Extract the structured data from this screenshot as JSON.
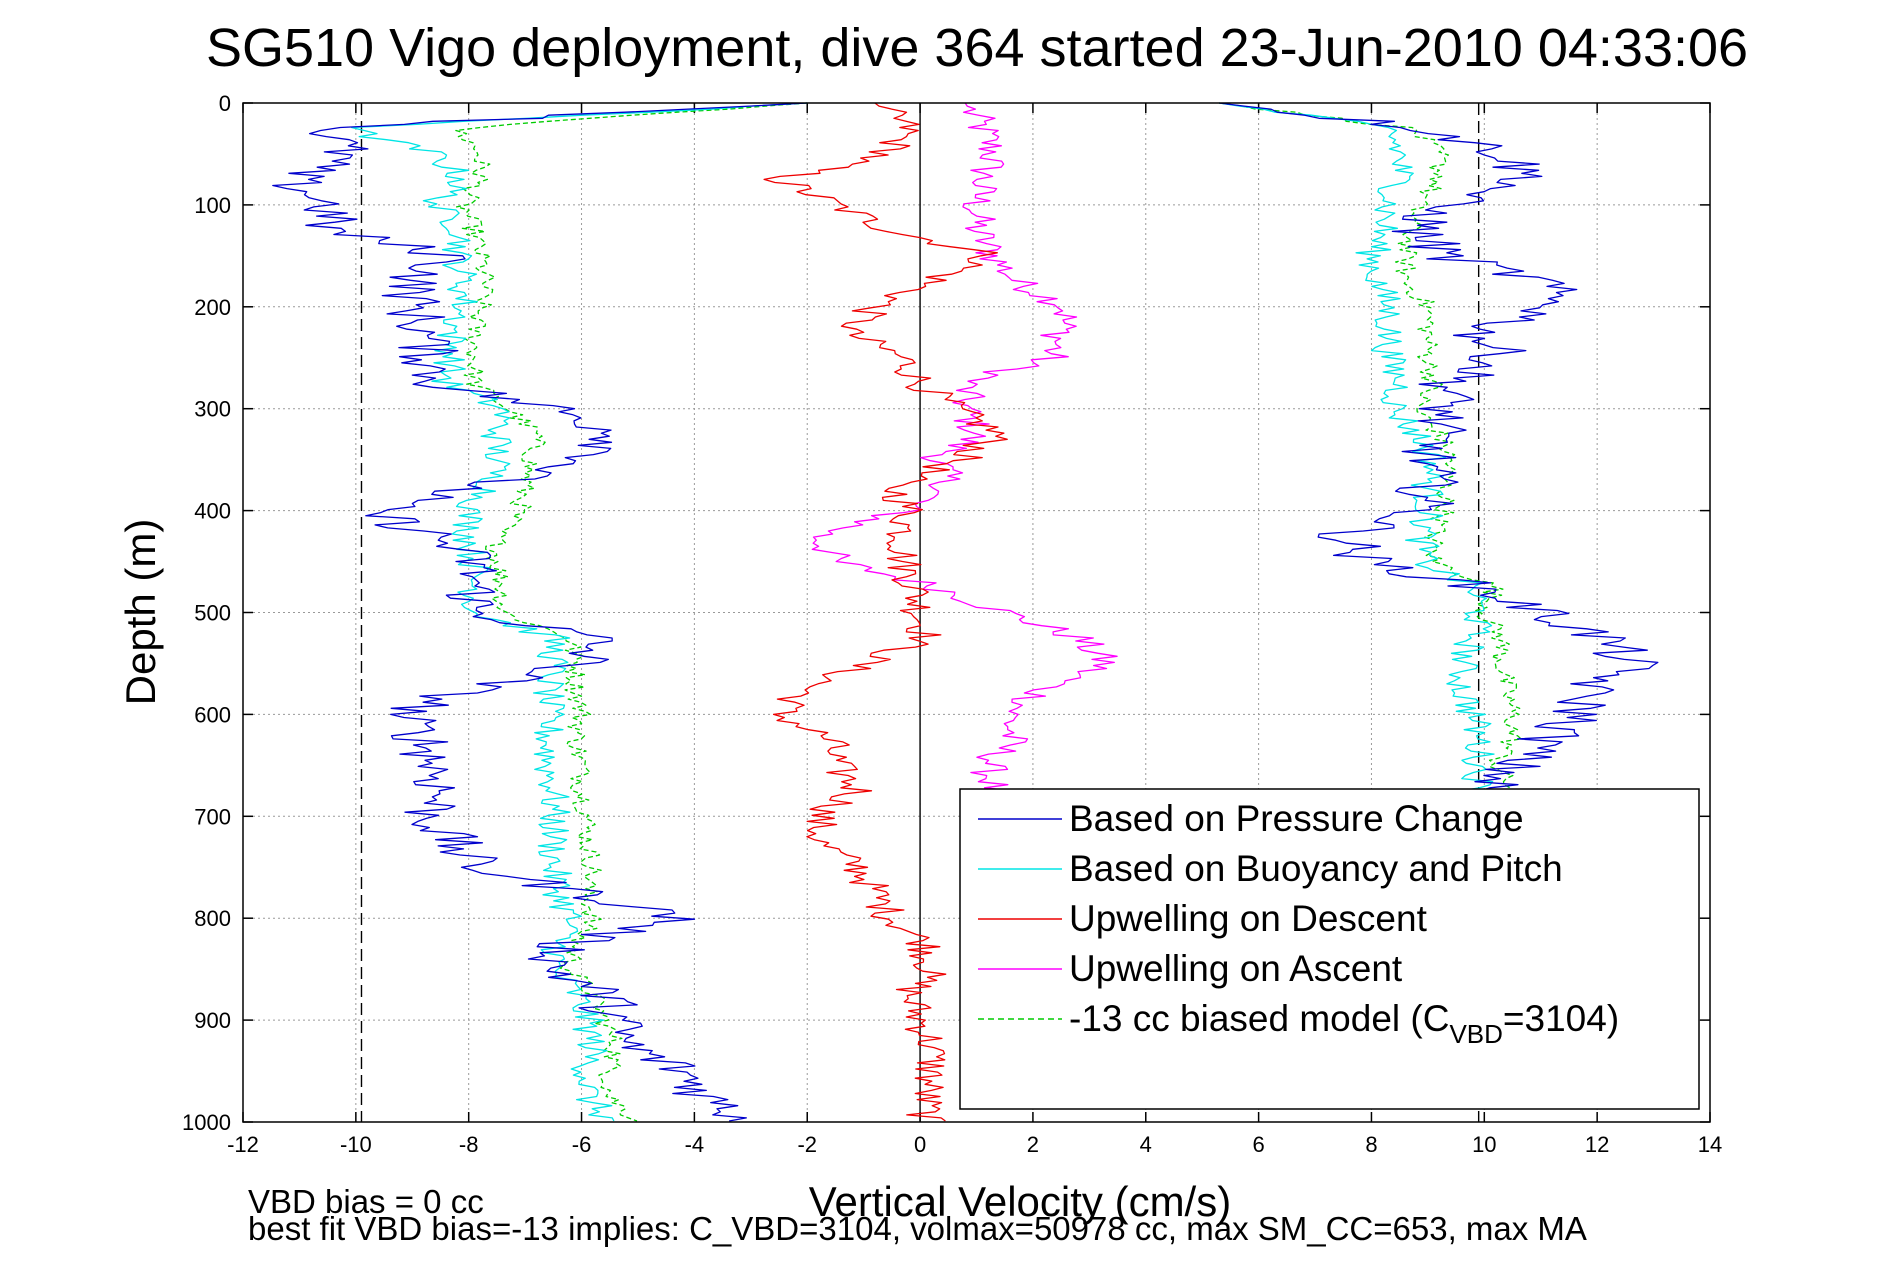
{
  "chart_data": {
    "type": "line",
    "title": "SG510 Vigo deployment, dive 364 started 23-Jun-2010 04:33:06",
    "xlabel": "Vertical Velocity (cm/s)",
    "ylabel": "Depth (m)",
    "xlim": [
      -12,
      14
    ],
    "ylim": [
      0,
      1000
    ],
    "y_reversed": true,
    "grid": true,
    "legend_position": "lower-right",
    "xticks": [
      "-12",
      "-10",
      "-8",
      "-6",
      "-4",
      "-2",
      "0",
      "2",
      "4",
      "6",
      "8",
      "10",
      "12",
      "14"
    ],
    "yticks": [
      "0",
      "100",
      "200",
      "300",
      "400",
      "500",
      "600",
      "700",
      "800",
      "900",
      "1000"
    ],
    "reference_lines": [
      {
        "x": -9.9,
        "style": "dashed",
        "color": "#000000"
      },
      {
        "x": 9.9,
        "style": "dashed",
        "color": "#000000"
      },
      {
        "x": 0,
        "style": "solid",
        "color": "#000000"
      }
    ],
    "legend": [
      {
        "label": "Based on Pressure Change",
        "color": "#0000cc",
        "dash": false
      },
      {
        "label": "Based on Buoyancy and Pitch",
        "color": "#00e5e5",
        "dash": false
      },
      {
        "label": "Upwelling on Descent",
        "color": "#ee0000",
        "dash": false
      },
      {
        "label": "Upwelling on Ascent",
        "color": "#ff00ff",
        "dash": false
      },
      {
        "label_main": "-13 cc biased model (C",
        "label_sub": "VBD",
        "label_end": "=3104)",
        "color": "#00cc00",
        "dash": true
      }
    ],
    "depth": [
      0,
      25,
      50,
      75,
      100,
      125,
      150,
      175,
      200,
      225,
      250,
      275,
      300,
      325,
      350,
      375,
      400,
      425,
      450,
      475,
      500,
      525,
      550,
      575,
      600,
      625,
      650,
      675,
      700,
      725,
      750,
      775,
      800,
      825,
      850,
      875,
      900,
      925,
      950,
      975,
      1000
    ],
    "series": [
      {
        "name": "Based on Pressure Change",
        "color": "#0000cc",
        "jitter": 0.55,
        "descent": [
          -2,
          -10.5,
          -10.2,
          -11.2,
          -10.5,
          -10.5,
          -8.3,
          -9.0,
          -9.0,
          -8.8,
          -8.7,
          -8.6,
          -6.5,
          -5.3,
          -5.8,
          -7.8,
          -9.8,
          -8.6,
          -7.9,
          -7.9,
          -7.9,
          -5.8,
          -6.0,
          -8.0,
          -9.2,
          -8.8,
          -8.6,
          -8.5,
          -8.7,
          -8.3,
          -7.9,
          -6.0,
          -4.2,
          -6.3,
          -6.5,
          -5.6,
          -5.4,
          -5.2,
          -4.2,
          -3.8,
          -3.0
        ],
        "ascent": [
          5.3,
          9.0,
          10.4,
          10.8,
          9.2,
          8.8,
          9.3,
          11.0,
          11.3,
          9.9,
          10.3,
          9.4,
          9.3,
          9.1,
          9.0,
          9.0,
          8.9,
          7.5,
          7.9,
          9.9,
          11.0,
          12.1,
          12.6,
          11.8,
          11.7,
          11.1,
          10.5,
          10.0
        ]
      },
      {
        "name": "Based on Buoyancy and Pitch",
        "color": "#00e5e5",
        "jitter": 0.3,
        "descent": [
          -2,
          -10.2,
          -8.6,
          -8.1,
          -8.6,
          -8.1,
          -8.2,
          -8.1,
          -8.1,
          -8.3,
          -8.3,
          -8.4,
          -7.4,
          -7.5,
          -7.5,
          -7.6,
          -8.0,
          -8.0,
          -7.9,
          -7.9,
          -7.9,
          -6.5,
          -6.5,
          -6.6,
          -6.6,
          -6.6,
          -6.6,
          -6.5,
          -6.5,
          -6.5,
          -6.5,
          -6.4,
          -6.2,
          -6.4,
          -6.5,
          -6.1,
          -5.9,
          -5.8,
          -5.9,
          -5.9,
          -5.5
        ],
        "ascent": [
          5.3,
          8.3,
          8.5,
          8.5,
          8.3,
          8.2,
          8.0,
          8.1,
          8.3,
          8.3,
          8.3,
          8.5,
          8.4,
          8.8,
          9.1,
          9.0,
          9.0,
          8.9,
          8.9,
          9.8,
          9.9,
          9.8,
          9.6,
          9.6,
          9.8,
          9.9,
          9.9,
          9.9
        ]
      },
      {
        "name": "Upwelling on Descent",
        "color": "#ee0000",
        "jitter": 0.35,
        "descent": [
          -0.8,
          -0.2,
          -0.6,
          -2.5,
          -1.5,
          -0.5,
          1.3,
          0.2,
          -0.8,
          -1.3,
          -0.3,
          0.0,
          0.6,
          1.4,
          0.7,
          -0.5,
          -0.2,
          -0.3,
          -0.3,
          -0.1,
          0.0,
          0.1,
          -1.0,
          -2.0,
          -2.5,
          -1.6,
          -1.5,
          -1.1,
          -1.8,
          -1.8,
          -1.1,
          -0.8,
          -0.5,
          0.1,
          0.2,
          -0.2,
          0.0,
          0.2,
          0.2,
          0.1,
          0.1
        ]
      },
      {
        "name": "Upwelling on Ascent",
        "color": "#ff00ff",
        "jitter": 0.35,
        "descent": [
          0.8,
          1.1,
          1.3,
          1.1,
          1.0,
          1.0,
          1.3,
          1.7,
          2.6,
          2.5,
          2.3,
          0.8,
          0.8,
          1.0,
          0.3,
          0.5,
          -0.3,
          -1.8,
          -1.5,
          0.3,
          1.5,
          2.8,
          3.3,
          2.2,
          1.6,
          1.6,
          1.2,
          1.3
        ]
      }
    ],
    "biased_model": {
      "name": "-13 cc biased model",
      "color": "#00cc00",
      "jitter": 0.2,
      "descent": [
        -2,
        -8.2,
        -7.8,
        -7.8,
        -8.1,
        -7.9,
        -7.8,
        -7.7,
        -7.8,
        -7.9,
        -7.9,
        -7.9,
        -7.3,
        -6.8,
        -6.9,
        -7.0,
        -7.1,
        -7.5,
        -7.5,
        -7.4,
        -7.4,
        -6.2,
        -6.1,
        -6.1,
        -6.0,
        -6.1,
        -6.0,
        -6.0,
        -5.9,
        -5.9,
        -5.8,
        -5.9,
        -5.8,
        -6.1,
        -6.2,
        -5.8,
        -5.6,
        -5.4,
        -5.5,
        -5.5,
        -5.0
      ],
      "ascent": [
        5.3,
        8.7,
        9.2,
        9.2,
        8.8,
        8.7,
        8.6,
        8.6,
        9.0,
        9.0,
        9.0,
        9.1,
        8.8,
        9.2,
        9.4,
        9.3,
        9.3,
        9.1,
        9.1,
        10.2,
        10.0,
        10.3,
        10.3,
        10.4,
        10.5,
        10.5,
        10.2,
        10.5
      ]
    }
  },
  "footer": {
    "line1": "VBD bias = 0 cc",
    "line2": "best fit VBD bias=-13 implies: C_VBD=3104, volmax=50978 cc, max SM_CC=653, max MA"
  }
}
